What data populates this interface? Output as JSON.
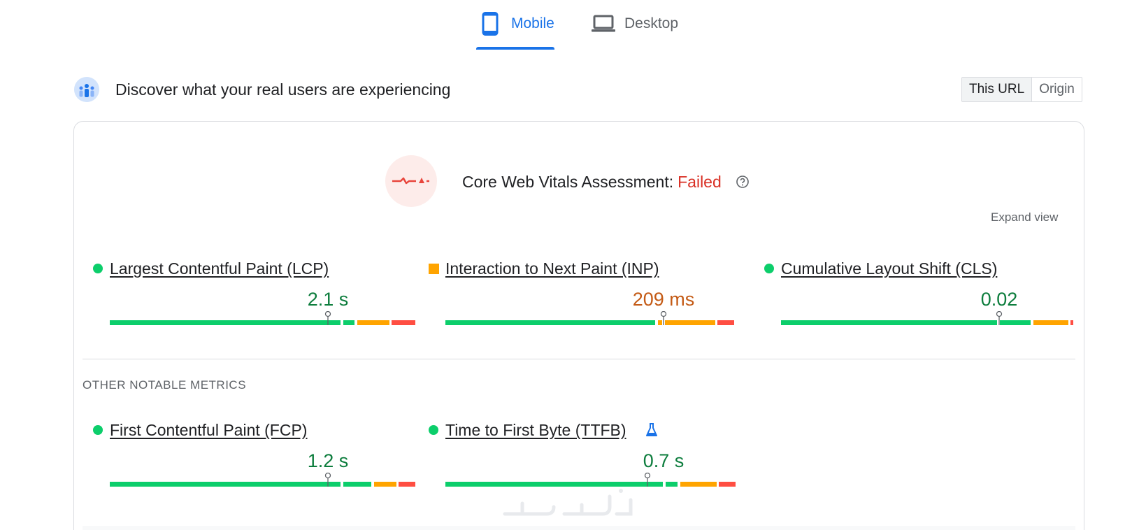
{
  "tabs": [
    {
      "label": "Mobile",
      "icon": "phone-icon",
      "active": true
    },
    {
      "label": "Desktop",
      "icon": "laptop-icon",
      "active": false
    }
  ],
  "header": {
    "title": "Discover what your real users are experiencing",
    "logo_icon": "crux-users-icon"
  },
  "scope_toggle": {
    "options": [
      "This URL",
      "Origin"
    ],
    "selected": "This URL"
  },
  "assessment": {
    "label": "Core Web Vitals Assessment:",
    "status": "Failed",
    "status_color": "#d93025",
    "badge_icon": "failed-pulse-icon",
    "help_icon": "help-icon"
  },
  "expand_view": "Expand view",
  "core_metrics": [
    {
      "name": "Largest Contentful Paint (LCP)",
      "value": "2.1 s",
      "rating": "good",
      "distribution": {
        "good": 0.79,
        "needs_improvement": 0.12,
        "poor": 0.09
      }
    },
    {
      "name": "Interaction to Next Paint (INP)",
      "value": "209 ms",
      "rating": "needs-improvement",
      "distribution": {
        "good": 0.73,
        "needs_improvement": 0.2,
        "poor": 0.07
      }
    },
    {
      "name": "Cumulative Layout Shift (CLS)",
      "value": "0.02",
      "rating": "good",
      "distribution": {
        "good": 0.85,
        "needs_improvement": 0.14,
        "poor": 0.01
      }
    }
  ],
  "other_metrics_title": "OTHER NOTABLE METRICS",
  "other_metrics": [
    {
      "name": "First Contentful Paint (FCP)",
      "value": "1.2 s",
      "rating": "good",
      "distribution": {
        "good": 0.85,
        "needs_improvement": 0.09,
        "poor": 0.06
      }
    },
    {
      "name": "Time to First Byte (TTFB)",
      "value": "0.7 s",
      "rating": "good",
      "experimental_icon": "flask-icon",
      "distribution": {
        "good": 0.8,
        "needs_improvement": 0.14,
        "poor": 0.06
      }
    }
  ],
  "colors": {
    "accent": "#1a73e8",
    "good": "#0cce6b",
    "needs_improvement": "#ffa400",
    "poor": "#ff4e42",
    "good_text": "#0d7d3d",
    "ni_text": "#c45b16"
  }
}
